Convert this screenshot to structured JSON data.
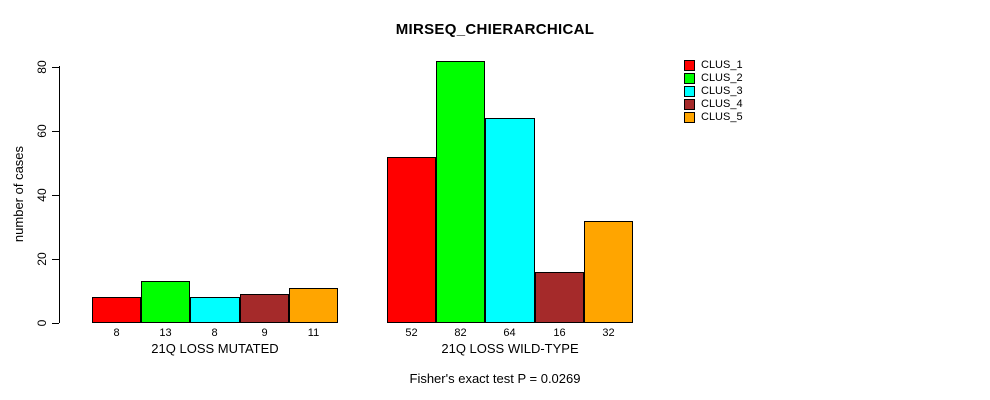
{
  "chart_data": {
    "type": "bar",
    "title": "MIRSEQ_CHIERARCHICAL",
    "ylabel": "number of cases",
    "footnote": "Fisher's exact test P = 0.0269",
    "categories": [
      "21Q LOSS MUTATED",
      "21Q LOSS WILD-TYPE"
    ],
    "series": [
      {
        "name": "CLUS_1",
        "color": "#FF0000",
        "values": [
          8,
          52
        ]
      },
      {
        "name": "CLUS_2",
        "color": "#00FF00",
        "values": [
          13,
          82
        ]
      },
      {
        "name": "CLUS_3",
        "color": "#00FFFF",
        "values": [
          8,
          64
        ]
      },
      {
        "name": "CLUS_4",
        "color": "#A52A2A",
        "values": [
          9,
          16
        ]
      },
      {
        "name": "CLUS_5",
        "color": "#FFA500",
        "values": [
          11,
          32
        ]
      }
    ],
    "yticks": [
      0,
      20,
      40,
      60,
      80
    ],
    "ylim": [
      0,
      82
    ],
    "grid": false,
    "legend_position": "top-right",
    "bar_value_labels": true,
    "bar_outline_color": "#000000",
    "background_color": "#FFFFFF"
  }
}
